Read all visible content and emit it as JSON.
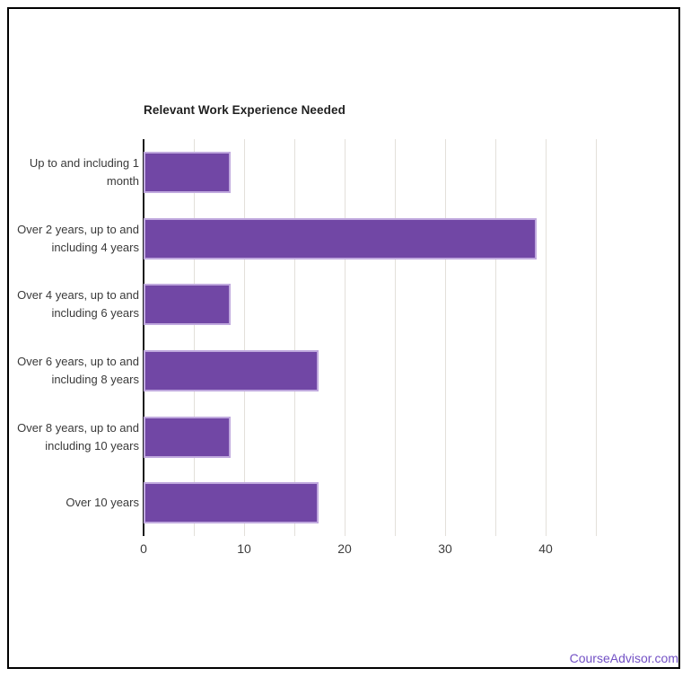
{
  "chart": {
    "footer": "CourseAdvisor.com"
  },
  "chart_data": {
    "type": "bar",
    "orientation": "horizontal",
    "title": "Relevant Work Experience Needed",
    "categories": [
      "Up to and including 1 month",
      "Over 2 years, up to and including 4 years",
      "Over 4 years, up to and including 6 years",
      "Over 6 years, up to and including 8 years",
      "Over 8 years, up to and including 10 years",
      "Over 10 years"
    ],
    "values": [
      8.7,
      39.1,
      8.7,
      17.4,
      8.7,
      17.4
    ],
    "xlabel": "",
    "ylabel": "",
    "xlim": [
      0,
      45
    ],
    "x_ticks": [
      0,
      10,
      20,
      30,
      40
    ],
    "gridline_step": 5,
    "grid": true,
    "legend": "none",
    "bar_color": "#7147a5",
    "bar_border_color": "#c0a9de",
    "gridline_color": "#e3e0da",
    "axis_color": "#1b1b1b"
  }
}
